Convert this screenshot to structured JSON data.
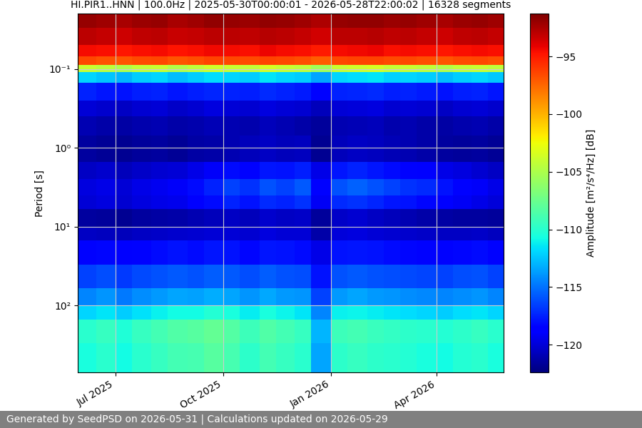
{
  "chart_data": {
    "type": "heatmap",
    "title": "HI.PIR1..HNN | 100.0Hz | 2025-05-30T00:00:01 - 2026-05-28T22:00:02 | 16328 segments",
    "ylabel": "Period [s]",
    "colorbar_label": "Amplitude [m²/s⁴/Hz] [dB]",
    "footer": "Generated by SeedPSD on 2026-05-31 | Calculations updated on 2026-05-29",
    "log": "y",
    "grid": true,
    "x": [
      "2025-05-30",
      "2025-06-15",
      "2025-07-01",
      "2025-07-15",
      "2025-08-01",
      "2025-08-15",
      "2025-09-01",
      "2025-09-15",
      "2025-10-01",
      "2025-10-15",
      "2025-11-01",
      "2025-11-15",
      "2025-12-01",
      "2025-12-15",
      "2026-01-01",
      "2026-01-15",
      "2026-02-01",
      "2026-02-15",
      "2026-03-01",
      "2026-03-15",
      "2026-04-01",
      "2026-04-15",
      "2026-05-01",
      "2026-05-15",
      "2026-05-28"
    ],
    "y": [
      0.02,
      0.03,
      0.05,
      0.07,
      0.09,
      0.11,
      0.15,
      0.25,
      0.4,
      0.7,
      1.5,
      2.5,
      4,
      6,
      10,
      15,
      30,
      60,
      100,
      150,
      300,
      700
    ],
    "cells": [
      [
        -92.0,
        -92.2,
        -92.5,
        -92.1,
        -92.0,
        -92.4,
        -92.2,
        -91.9,
        -92.0,
        -92.1,
        -91.8,
        -92.0,
        -92.2,
        -92.6,
        -92.0,
        -91.9,
        -91.8,
        -92.1,
        -92.0,
        -92.2,
        -92.5,
        -92.1,
        -92.0,
        -92.2
      ],
      [
        -93.0,
        -93.2,
        -93.4,
        -93.1,
        -93.0,
        -93.3,
        -93.2,
        -92.9,
        -93.0,
        -93.1,
        -92.8,
        -93.0,
        -93.2,
        -93.5,
        -93.0,
        -92.9,
        -92.8,
        -93.1,
        -93.0,
        -93.2,
        -93.4,
        -93.1,
        -93.0,
        -93.2
      ],
      [
        -94.5,
        -94.7,
        -94.9,
        -94.6,
        -94.5,
        -94.8,
        -94.6,
        -94.4,
        -94.5,
        -94.6,
        -94.3,
        -94.5,
        -94.7,
        -95.0,
        -94.5,
        -94.4,
        -94.3,
        -94.6,
        -94.5,
        -94.7,
        -94.9,
        -94.6,
        -94.5,
        -94.7
      ],
      [
        -96.5,
        -96.8,
        -97.0,
        -96.6,
        -96.5,
        -96.9,
        -96.7,
        -96.4,
        -96.5,
        -96.6,
        -96.3,
        -96.5,
        -96.7,
        -97.2,
        -96.5,
        -96.4,
        -96.3,
        -96.6,
        -96.5,
        -96.7,
        -97.0,
        -96.6,
        -96.5,
        -96.7
      ],
      [
        -104,
        -104.5,
        -105,
        -104.2,
        -104,
        -104.8,
        -104.3,
        -103.8,
        -104,
        -104.2,
        -103.5,
        -104,
        -104.3,
        -105.5,
        -104,
        -103.8,
        -103.5,
        -104.1,
        -104,
        -104.3,
        -104.8,
        -104.2,
        -104,
        -104.4
      ],
      [
        -112,
        -112.5,
        -113,
        -112.3,
        -112,
        -112.8,
        -112.2,
        -111.8,
        -112,
        -112.2,
        -111.5,
        -112,
        -112.3,
        -113.5,
        -112,
        -111.8,
        -111.5,
        -112.1,
        -112,
        -112.3,
        -112.8,
        -112.2,
        -112,
        -112.4
      ],
      [
        -117.5,
        -117.8,
        -118,
        -117.6,
        -117.5,
        -117.9,
        -117.6,
        -117.3,
        -117.5,
        -117.6,
        -117.2,
        -117.5,
        -117.7,
        -118.5,
        -117.5,
        -117.3,
        -117.2,
        -117.6,
        -117.5,
        -117.7,
        -118,
        -117.6,
        -117.5,
        -117.8
      ],
      [
        -120,
        -120.3,
        -120.5,
        -120.1,
        -120,
        -120.4,
        -120.2,
        -119.8,
        -120,
        -120.1,
        -119.8,
        -120,
        -120.2,
        -120.8,
        -120,
        -119.9,
        -119.8,
        -120.1,
        -120,
        -120.2,
        -120.5,
        -120.1,
        -120,
        -120.3
      ],
      [
        -121,
        -121.2,
        -121.4,
        -121.1,
        -121,
        -121.3,
        -121.1,
        -120.9,
        -121,
        -121.1,
        -120.8,
        -121,
        -121.2,
        -121.6,
        -121,
        -120.9,
        -120.8,
        -121.1,
        -121,
        -121.2,
        -121.4,
        -121.1,
        -121,
        -121.2
      ],
      [
        -121.5,
        -121.7,
        -121.8,
        -121.6,
        -121.5,
        -121.7,
        -121.4,
        -121.2,
        -121,
        -120.8,
        -120.5,
        -120.8,
        -120.6,
        -121.8,
        -120.7,
        -120.5,
        -120.6,
        -120.9,
        -121,
        -121.2,
        -121.5,
        -121.6,
        -121.5,
        -121.7
      ],
      [
        -120.5,
        -120.3,
        -120.8,
        -120.4,
        -120.2,
        -120,
        -119.5,
        -119,
        -118.2,
        -118.5,
        -117.8,
        -118,
        -117.6,
        -119.5,
        -117.8,
        -117.5,
        -117.8,
        -118.2,
        -118.5,
        -118.8,
        -119.5,
        -119.8,
        -120.2,
        -120.5
      ],
      [
        -119.8,
        -119.5,
        -120,
        -119.6,
        -119.3,
        -119,
        -118.2,
        -117.5,
        -116.5,
        -117,
        -116,
        -116.5,
        -115.8,
        -118.5,
        -116,
        -115.5,
        -116,
        -116.5,
        -117,
        -117.2,
        -118,
        -118.5,
        -119,
        -119.5
      ],
      [
        -120,
        -119.8,
        -120.2,
        -119.8,
        -119.6,
        -119.4,
        -118.8,
        -118.2,
        -117.5,
        -118,
        -117.2,
        -117.5,
        -117,
        -119.2,
        -117.2,
        -117,
        -117.3,
        -117.8,
        -118,
        -118.3,
        -118.8,
        -119.2,
        -119.6,
        -119.9
      ],
      [
        -121.5,
        -121.6,
        -121.8,
        -121.5,
        -121.4,
        -121.3,
        -121,
        -120.8,
        -120.5,
        -120.8,
        -120.3,
        -120.5,
        -120.4,
        -121.6,
        -120.4,
        -120.2,
        -120.5,
        -120.8,
        -121,
        -121.2,
        -121.4,
        -121.5,
        -121.5,
        -121.6
      ],
      [
        -120.5,
        -120.6,
        -120.8,
        -120.5,
        -120.4,
        -120.3,
        -120.2,
        -120,
        -120,
        -120.2,
        -119.8,
        -120,
        -120,
        -121.2,
        -119.9,
        -119.8,
        -120,
        -120.2,
        -120.3,
        -120.4,
        -120.5,
        -120.5,
        -120.4,
        -120.6
      ],
      [
        -118.5,
        -118.3,
        -118.8,
        -118.4,
        -118.2,
        -118,
        -118.2,
        -117.8,
        -118,
        -118.3,
        -117.8,
        -118,
        -118.2,
        -119.5,
        -118,
        -117.8,
        -118,
        -118.2,
        -118.3,
        -118.4,
        -118.5,
        -118.3,
        -118.2,
        -118.5
      ],
      [
        -116.5,
        -116.2,
        -116.8,
        -116.3,
        -116,
        -115.8,
        -116,
        -115.6,
        -115.8,
        -116.2,
        -115.6,
        -116,
        -116.2,
        -118,
        -116,
        -115.8,
        -116,
        -116.2,
        -116.3,
        -116.4,
        -116.5,
        -116.2,
        -116,
        -116.5
      ],
      [
        -114.5,
        -114,
        -114.8,
        -114.2,
        -113.8,
        -113.5,
        -113.6,
        -113.2,
        -113.5,
        -114,
        -113.4,
        -113.8,
        -114,
        -116.5,
        -113.8,
        -113.5,
        -113.8,
        -114,
        -114.2,
        -114.3,
        -114.5,
        -114.2,
        -114,
        -114.5
      ],
      [
        -112,
        -111.5,
        -112.3,
        -111.6,
        -111.2,
        -110.8,
        -110.8,
        -110.2,
        -110.6,
        -111.3,
        -110.6,
        -111,
        -111.5,
        -114.5,
        -111.2,
        -111,
        -111.3,
        -111.5,
        -111.8,
        -112,
        -112.2,
        -111.8,
        -111.5,
        -112
      ],
      [
        -110,
        -109.5,
        -110.3,
        -109.5,
        -109,
        -108.5,
        -108.3,
        -107.8,
        -108.4,
        -109.2,
        -108.5,
        -109,
        -109.5,
        -113,
        -109.2,
        -109,
        -109.4,
        -109.6,
        -109.8,
        -110,
        -110.2,
        -109.8,
        -109.5,
        -110
      ],
      [
        -110.5,
        -110,
        -110.8,
        -110,
        -109.5,
        -109,
        -108.8,
        -108.3,
        -108.8,
        -109.8,
        -109,
        -109.5,
        -110,
        -113.5,
        -109.8,
        -109.5,
        -109.8,
        -110,
        -110.2,
        -110.5,
        -110.8,
        -110.2,
        -110,
        -110.5
      ]
    ],
    "xlim": [
      "2025-05-30",
      "2026-05-28"
    ],
    "xticks": [
      {
        "value": "2025-07-01",
        "label": "Jul 2025"
      },
      {
        "value": "2025-10-01",
        "label": "Oct 2025"
      },
      {
        "value": "2026-01-01",
        "label": "Jan 2026"
      },
      {
        "value": "2026-04-01",
        "label": "Apr 2026"
      }
    ],
    "ylim": [
      700,
      0.02
    ],
    "yticks": [
      {
        "value": 0.1,
        "label": "10⁻¹"
      },
      {
        "value": 1,
        "label": "10⁰"
      },
      {
        "value": 10,
        "label": "10¹"
      },
      {
        "value": 100,
        "label": "10²"
      }
    ],
    "clim": [
      -122.4,
      -91.3
    ],
    "cticks": [
      {
        "value": -95,
        "label": "−95"
      },
      {
        "value": -100,
        "label": "−100"
      },
      {
        "value": -105,
        "label": "−105"
      },
      {
        "value": -110,
        "label": "−110"
      },
      {
        "value": -115,
        "label": "−115"
      },
      {
        "value": -120,
        "label": "−120"
      }
    ]
  }
}
